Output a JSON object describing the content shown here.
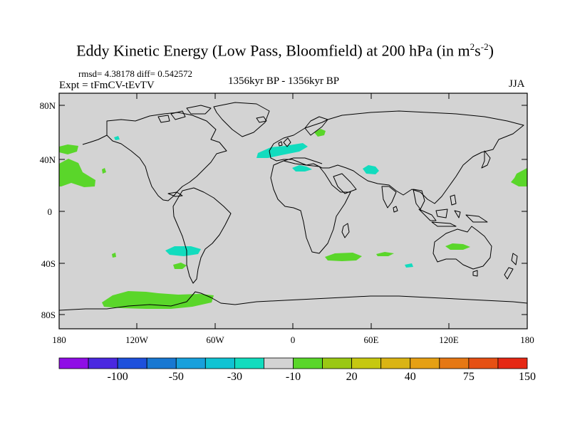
{
  "title": {
    "main": "Eddy Kinetic Energy (Low Pass, Bloomfield) at 200 hPa (in m",
    "exp1": "2",
    "mid": "s",
    "exp2": "-2",
    "close": ")"
  },
  "subtitle": {
    "stats": "rmsd= 4.38178 diff= 0.542572",
    "expt": "Expt = tFmCV-tEvTV",
    "period": "1356kyr BP - 1356kyr BP",
    "season": "JJA"
  },
  "map": {
    "background_color": "#d3d3d3",
    "lat_labels": [
      "80N",
      "40N",
      "0",
      "40S",
      "80S"
    ],
    "lon_labels": [
      "180",
      "120W",
      "60W",
      "0",
      "60E",
      "120E",
      "180"
    ]
  },
  "colorbar": {
    "colors": [
      "#8f0de6",
      "#4a28e0",
      "#1e50dc",
      "#1878d2",
      "#18a0dc",
      "#10c3d3",
      "#12dcbe",
      "#d3d3d3",
      "#5ad62a",
      "#9ac814",
      "#c6c810",
      "#dab414",
      "#e6a014",
      "#e67814",
      "#e65014",
      "#e62814"
    ],
    "labels": [
      "-100",
      "-50",
      "-30",
      "-10",
      "20",
      "40",
      "75",
      "150"
    ]
  }
}
